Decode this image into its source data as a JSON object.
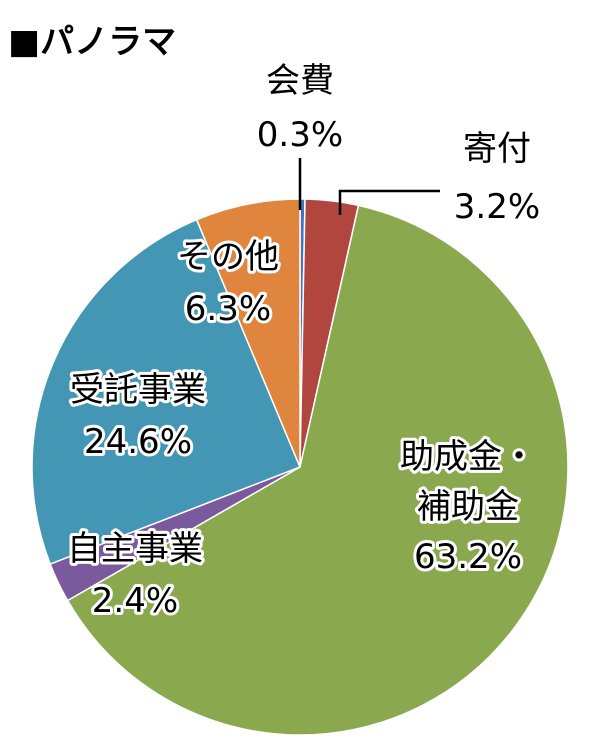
{
  "title": "■パノラマ",
  "chart_data": {
    "type": "pie",
    "title": "■パノラマ",
    "unit": "%",
    "slices": [
      {
        "label": "会費",
        "value": 0.3,
        "display": "0.3%",
        "color": "#4472c4"
      },
      {
        "label": "寄付",
        "value": 3.2,
        "display": "3.2%",
        "color": "#b0463e"
      },
      {
        "label": "助成金・補助金",
        "value": 63.2,
        "display": "63.2%",
        "color": "#8aa84e"
      },
      {
        "label": "自主事業",
        "value": 2.4,
        "display": "2.4%",
        "color": "#7a5a9c"
      },
      {
        "label": "受託事業",
        "value": 24.6,
        "display": "24.6%",
        "color": "#4497b4"
      },
      {
        "label": "その他",
        "value": 6.3,
        "display": "6.3%",
        "color": "#e0853e"
      }
    ]
  }
}
